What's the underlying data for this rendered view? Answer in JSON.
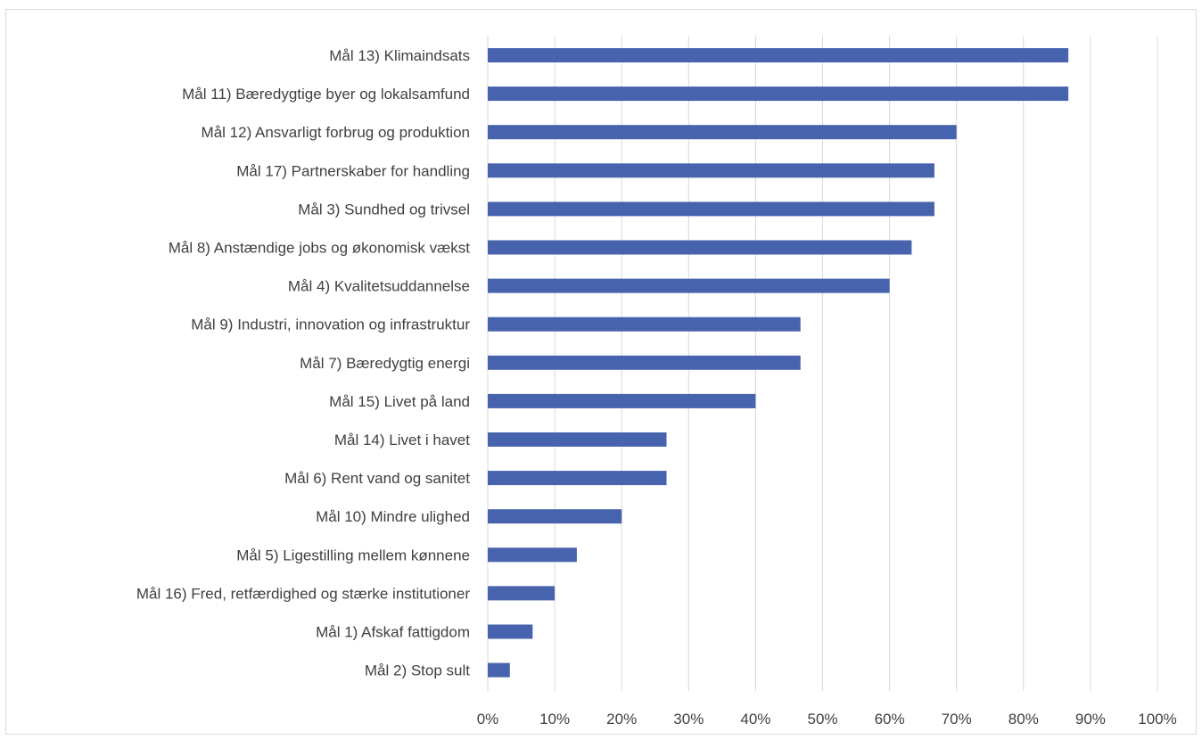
{
  "chart_data": {
    "type": "bar",
    "orientation": "horizontal",
    "categories": [
      "Mål 13) Klimaindsats",
      "Mål 11) Bæredygtige byer og lokalsamfund",
      "Mål 12) Ansvarligt forbrug og produktion",
      "Mål 17) Partnerskaber for handling",
      "Mål 3) Sundhed og trivsel",
      "Mål 8) Anstændige jobs og økonomisk vækst",
      "Mål 4) Kvalitetsuddannelse",
      "Mål 9) Industri, innovation og infrastruktur",
      "Mål 7) Bæredygtig energi",
      "Mål 15) Livet på land",
      "Mål 14) Livet i havet",
      "Mål 6) Rent vand og sanitet",
      "Mål 10) Mindre ulighed",
      "Mål 5) Ligestilling mellem kønnene",
      "Mål 16) Fred, retfærdighed og stærke institutioner",
      "Mål 1) Afskaf fattigdom",
      "Mål 2) Stop sult"
    ],
    "values": [
      86.7,
      86.7,
      70.0,
      66.7,
      66.7,
      63.3,
      60.0,
      46.7,
      46.7,
      40.0,
      26.7,
      26.7,
      20.0,
      13.3,
      10.0,
      6.7,
      3.3
    ],
    "x_ticks": [
      "0%",
      "10%",
      "20%",
      "30%",
      "40%",
      "50%",
      "60%",
      "70%",
      "80%",
      "90%",
      "100%"
    ],
    "xlim": [
      0,
      100
    ],
    "title": "",
    "xlabel": "",
    "ylabel": "",
    "grid": "vertical",
    "legend": "none",
    "bar_color": "#4763ad"
  }
}
